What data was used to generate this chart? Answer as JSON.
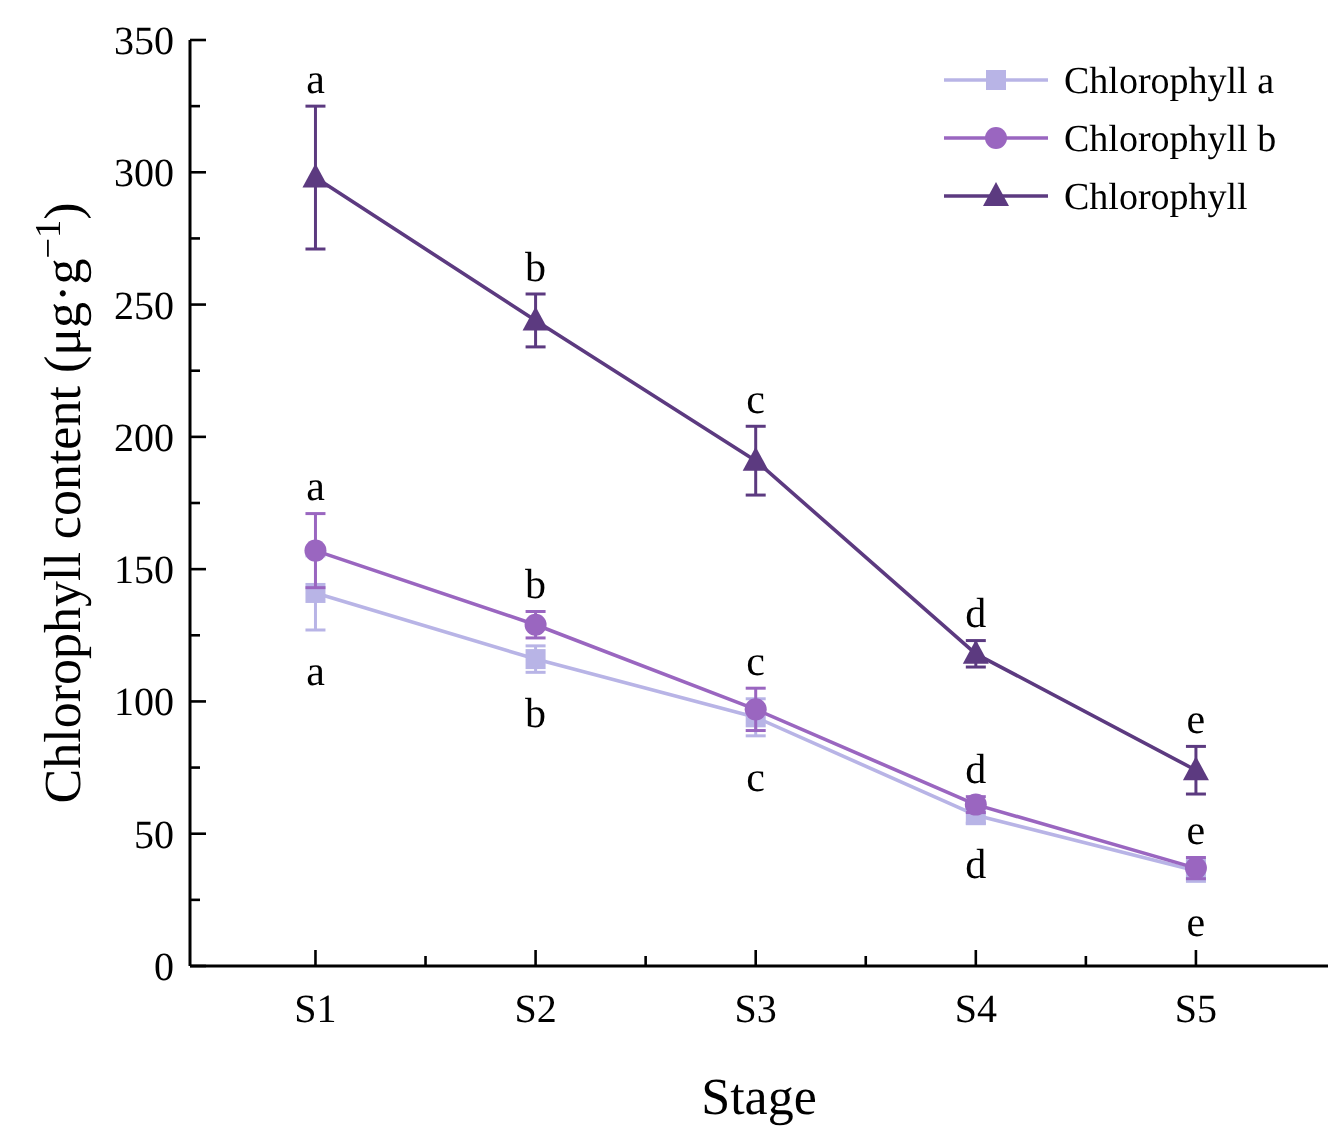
{
  "chart_data": {
    "type": "line",
    "xlabel": "Stage",
    "ylabel": "Chlorophyll content (μg·g$^{−1}$)",
    "categories": [
      "S1",
      "S2",
      "S3",
      "S4",
      "S5"
    ],
    "ylim": [
      0,
      350
    ],
    "yticks": [
      0,
      {
        "value": 25,
        "label": null
      },
      50,
      {
        "value": 75,
        "label": null
      },
      100,
      {
        "value": 125,
        "label": null
      },
      150,
      {
        "value": 175,
        "label": null
      },
      200,
      {
        "value": 225,
        "label": null
      },
      250,
      {
        "value": 275,
        "label": null
      },
      300,
      {
        "value": 325,
        "label": null
      },
      350
    ],
    "grid": false,
    "legend": "top right",
    "line_style": "solid",
    "series": [
      {
        "name": "Chlorophyll a",
        "color": "#b8b4e6",
        "marker": "square",
        "values": [
          141,
          116,
          94,
          57,
          36
        ],
        "errors": [
          14,
          5,
          7,
          3,
          4
        ]
      },
      {
        "name": "Chlorophyll b",
        "color": "#9a66c0",
        "marker": "circle",
        "values": [
          157,
          129,
          97,
          61,
          37
        ],
        "errors": [
          14,
          5,
          8,
          3,
          4
        ]
      },
      {
        "name": "Chlorophyll",
        "color": "#5c3a80",
        "marker": "triangle",
        "values": [
          298,
          244,
          191,
          118,
          74
        ],
        "errors": [
          27,
          10,
          13,
          5,
          9
        ]
      }
    ],
    "annotations": [
      {
        "text": "a",
        "x": "S1",
        "y": 298
      },
      {
        "text": "b",
        "x": "S2",
        "y": 244
      },
      {
        "text": "c",
        "x": "S3",
        "y": 191
      },
      {
        "text": "d",
        "x": "S4",
        "y": 118
      },
      {
        "text": "e",
        "x": "S5",
        "y": 74
      },
      {
        "text": "a",
        "x": "S1",
        "y": 157
      },
      {
        "text": "b",
        "x": "S2",
        "y": 129
      },
      {
        "text": "c",
        "x": "S3",
        "y": 97
      },
      {
        "text": "d",
        "x": "S4",
        "y": 61
      },
      {
        "text": "e",
        "x": "S5",
        "y": 37
      },
      {
        "text": "a",
        "x": "S1",
        "y": 141
      },
      {
        "text": "b",
        "x": "S2",
        "y": 116
      },
      {
        "text": "c",
        "x": "S3",
        "y": 94
      },
      {
        "text": "d",
        "x": "S4",
        "y": 57
      },
      {
        "text": "e",
        "x": "S5",
        "y": 36
      }
    ]
  }
}
